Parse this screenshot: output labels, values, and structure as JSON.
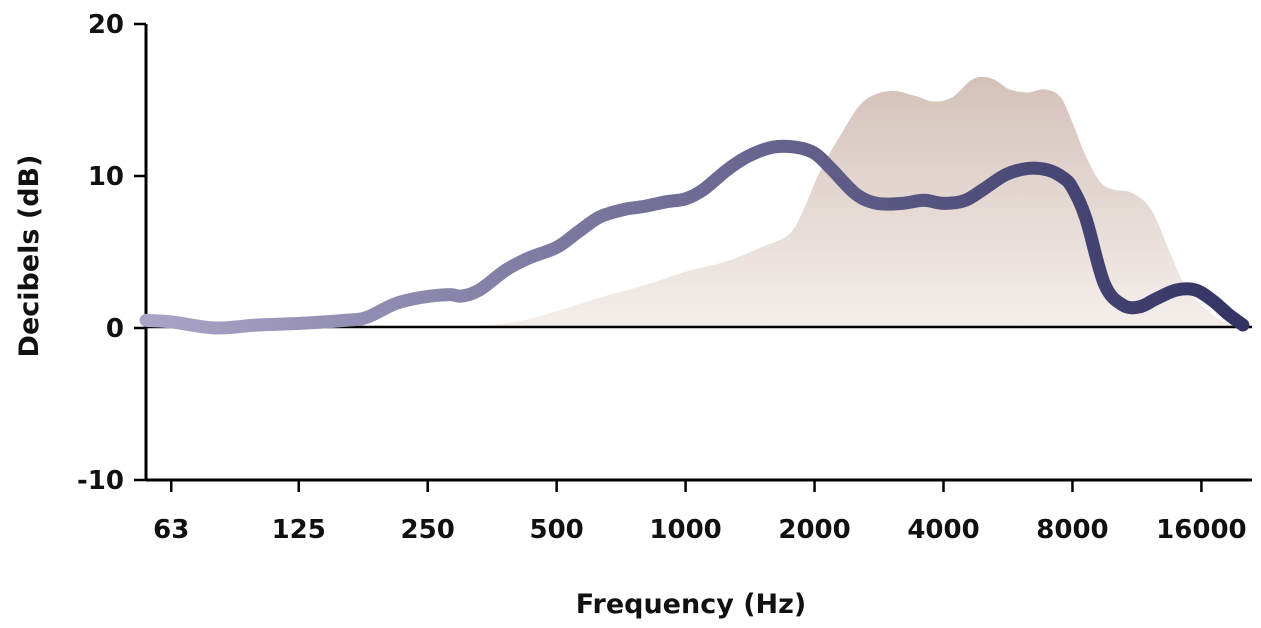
{
  "chart_data": {
    "type": "line",
    "xlabel": "Frequency (Hz)",
    "ylabel": "Decibels (dB)",
    "x_scale": "log2",
    "xlim": [
      55,
      21000
    ],
    "ylim": [
      -10,
      20
    ],
    "x_ticks": [
      63,
      125,
      250,
      500,
      1000,
      2000,
      4000,
      8000,
      16000
    ],
    "y_ticks": [
      -10,
      0,
      10,
      20
    ],
    "grid": false,
    "colors": {
      "line_start": "#a9a4c6",
      "line_end": "#333262",
      "area_top": "#d4c2ba",
      "area_bottom": "#f5efec",
      "axis": "#000000"
    },
    "series": [
      {
        "kind": "line",
        "x": [
          55,
          63,
          80,
          100,
          125,
          160,
          180,
          210,
          240,
          280,
          300,
          330,
          380,
          430,
          500,
          560,
          630,
          720,
          800,
          900,
          1000,
          1100,
          1250,
          1400,
          1600,
          1800,
          2000,
          2200,
          2500,
          2800,
          3200,
          3600,
          4000,
          4500,
          5000,
          5600,
          6300,
          7000,
          7600,
          8000,
          8600,
          9500,
          10500,
          11500,
          12500,
          14000,
          15500,
          17000,
          18500,
          20000
        ],
        "y": [
          0.5,
          0.4,
          0.0,
          0.2,
          0.3,
          0.5,
          0.7,
          1.6,
          2.0,
          2.2,
          2.1,
          2.5,
          3.8,
          4.6,
          5.3,
          6.3,
          7.3,
          7.8,
          8.0,
          8.3,
          8.5,
          9.1,
          10.4,
          11.3,
          11.9,
          11.9,
          11.5,
          10.4,
          8.8,
          8.2,
          8.2,
          8.4,
          8.2,
          8.4,
          9.2,
          10.1,
          10.5,
          10.4,
          9.9,
          9.2,
          7.2,
          2.9,
          1.5,
          1.4,
          1.9,
          2.5,
          2.5,
          1.8,
          0.9,
          0.2
        ]
      },
      {
        "kind": "area",
        "x": [
          280,
          400,
          500,
          630,
          800,
          1000,
          1250,
          1500,
          1750,
          1900,
          2050,
          2300,
          2600,
          3000,
          3400,
          3800,
          4200,
          4700,
          5200,
          5700,
          6300,
          6900,
          7500,
          8000,
          8600,
          9300,
          10000,
          11000,
          12200,
          13500,
          14500,
          15500,
          16500,
          17500,
          19000,
          20000
        ],
        "y": [
          0.0,
          0.4,
          1.1,
          2.0,
          2.8,
          3.7,
          4.4,
          5.3,
          6.2,
          8.0,
          10.2,
          12.7,
          14.9,
          15.6,
          15.3,
          14.9,
          15.2,
          16.4,
          16.4,
          15.7,
          15.5,
          15.7,
          15.2,
          13.5,
          11.3,
          9.6,
          9.1,
          8.9,
          7.8,
          5.0,
          3.0,
          1.9,
          1.2,
          0.6,
          0.2,
          0.0
        ]
      }
    ]
  }
}
